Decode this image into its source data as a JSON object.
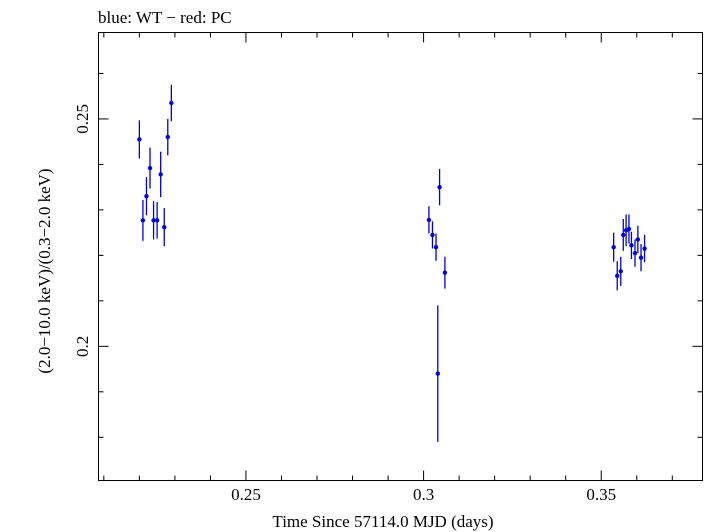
{
  "chart_data": {
    "type": "scatter",
    "title": "blue: WT − red: PC",
    "xlabel": "Time Since 57114.0 MJD (days)",
    "ylabel": "(2.0−10.0 keV)/(0.3−2.0 keV)",
    "xlim": [
      0.2085,
      0.3785
    ],
    "ylim": [
      0.1705,
      0.269
    ],
    "x_ticks": [
      {
        "value": 0.25,
        "label": "0.25"
      },
      {
        "value": 0.3,
        "label": "0.3"
      },
      {
        "value": 0.35,
        "label": "0.35"
      }
    ],
    "y_ticks": [
      {
        "value": 0.2,
        "label": "0.2"
      },
      {
        "value": 0.25,
        "label": "0.25"
      }
    ],
    "series": [
      {
        "name": "WT",
        "color": "#0000e0",
        "points": [
          {
            "x": 0.22,
            "y": 0.2455,
            "err": 0.0042
          },
          {
            "x": 0.221,
            "y": 0.2277,
            "err": 0.0045
          },
          {
            "x": 0.222,
            "y": 0.233,
            "err": 0.0042
          },
          {
            "x": 0.223,
            "y": 0.2392,
            "err": 0.0045
          },
          {
            "x": 0.224,
            "y": 0.2277,
            "err": 0.0042
          },
          {
            "x": 0.225,
            "y": 0.2277,
            "err": 0.004
          },
          {
            "x": 0.226,
            "y": 0.2378,
            "err": 0.005
          },
          {
            "x": 0.227,
            "y": 0.2262,
            "err": 0.0042
          },
          {
            "x": 0.228,
            "y": 0.246,
            "err": 0.004
          },
          {
            "x": 0.229,
            "y": 0.2535,
            "err": 0.004
          },
          {
            "x": 0.3015,
            "y": 0.2278,
            "err": 0.003
          },
          {
            "x": 0.3025,
            "y": 0.2245,
            "err": 0.003
          },
          {
            "x": 0.3035,
            "y": 0.2218,
            "err": 0.003
          },
          {
            "x": 0.304,
            "y": 0.194,
            "err": 0.015
          },
          {
            "x": 0.3045,
            "y": 0.235,
            "err": 0.004
          },
          {
            "x": 0.306,
            "y": 0.2162,
            "err": 0.0035
          },
          {
            "x": 0.3535,
            "y": 0.2218,
            "err": 0.0032
          },
          {
            "x": 0.3545,
            "y": 0.2155,
            "err": 0.0032
          },
          {
            "x": 0.3555,
            "y": 0.2165,
            "err": 0.0032
          },
          {
            "x": 0.3562,
            "y": 0.2245,
            "err": 0.0035
          },
          {
            "x": 0.357,
            "y": 0.2255,
            "err": 0.0035
          },
          {
            "x": 0.3578,
            "y": 0.2258,
            "err": 0.0032
          },
          {
            "x": 0.3585,
            "y": 0.2222,
            "err": 0.003
          },
          {
            "x": 0.3595,
            "y": 0.2205,
            "err": 0.003
          },
          {
            "x": 0.3603,
            "y": 0.2235,
            "err": 0.003
          },
          {
            "x": 0.3612,
            "y": 0.2195,
            "err": 0.003
          },
          {
            "x": 0.3622,
            "y": 0.2215,
            "err": 0.003
          }
        ]
      }
    ]
  }
}
